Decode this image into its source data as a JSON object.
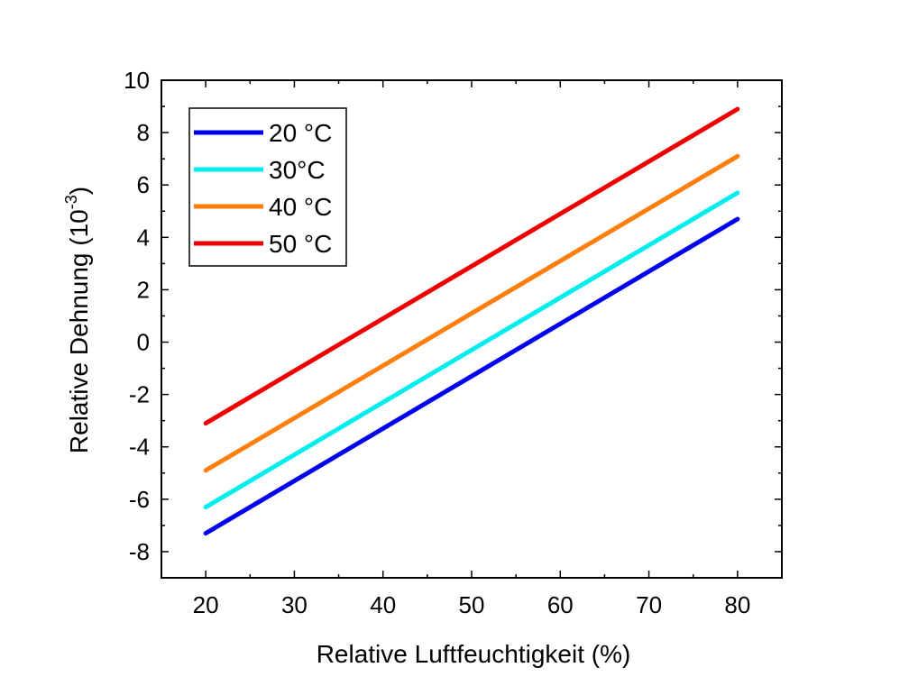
{
  "chart_data": {
    "type": "line",
    "xlabel": "Relative Luftfeuchtigkeit (%)",
    "ylabel_main": "Relative Dehnung (10",
    "ylabel_exp": "-3",
    "ylabel_close": ")",
    "xlim": [
      15,
      85
    ],
    "ylim": [
      -9,
      10
    ],
    "xticks": [
      20,
      30,
      40,
      50,
      60,
      70,
      80
    ],
    "yticks": [
      -8,
      -6,
      -4,
      -2,
      0,
      2,
      4,
      6,
      8,
      10
    ],
    "legend_position": "top-left",
    "grid": false,
    "series": [
      {
        "name": "20 °C",
        "color": "#0000ee",
        "x": [
          20,
          80
        ],
        "y": [
          -7.3,
          4.7
        ]
      },
      {
        "name": "30°C",
        "color": "#00eeee",
        "x": [
          20,
          80
        ],
        "y": [
          -6.3,
          5.7
        ]
      },
      {
        "name": "40 °C",
        "color": "#ff7f0e",
        "x": [
          20,
          80
        ],
        "y": [
          -4.9,
          7.1
        ]
      },
      {
        "name": "50 °C",
        "color": "#ee0000",
        "x": [
          20,
          80
        ],
        "y": [
          -3.1,
          8.9
        ]
      }
    ]
  }
}
